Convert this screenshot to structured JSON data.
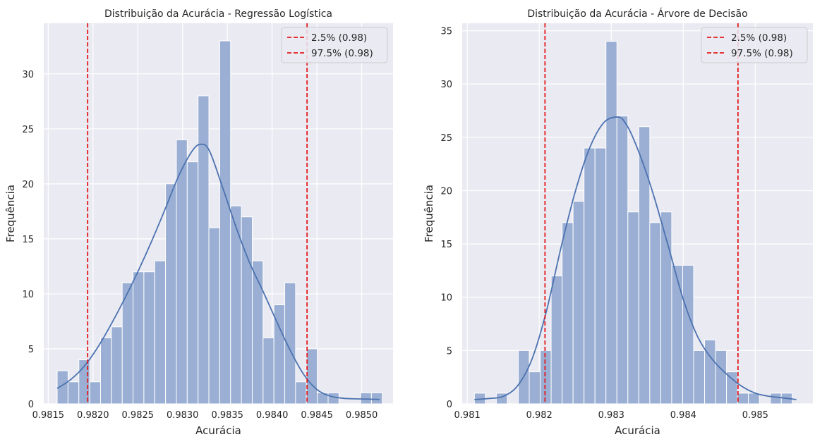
{
  "style": {
    "background": "#eaeaf2",
    "grid_color": "#ffffff",
    "bar_fill": "#9aafd3",
    "bar_edge": "#ffffff",
    "kde_color": "#4c72b0",
    "ci_color": "#e31a1c"
  },
  "chart_data": [
    {
      "type": "bar",
      "title": "Distribuição da Acurácia - Regressão Logística",
      "xlabel": "Acurácia",
      "ylabel": "Frequência",
      "grid": true,
      "legend_position": "top-right",
      "xlim": [
        0.98145,
        0.98535
      ],
      "ylim": [
        0,
        34.6
      ],
      "xticks": [
        0.9815,
        0.982,
        0.9825,
        0.983,
        0.9835,
        0.984,
        0.9845,
        0.985
      ],
      "xtick_labels": [
        "0.9815",
        "0.9820",
        "0.9825",
        "0.9830",
        "0.9835",
        "0.9840",
        "0.9845",
        "0.9850"
      ],
      "yticks": [
        0,
        5,
        10,
        15,
        20,
        25,
        30
      ],
      "ytick_labels": [
        "0",
        "5",
        "10",
        "15",
        "20",
        "25",
        "30"
      ],
      "bin_start": 0.9816,
      "bin_width": 0.000121,
      "counts": [
        3,
        2,
        4,
        2,
        6,
        7,
        11,
        12,
        12,
        13,
        20,
        24,
        22,
        28,
        16,
        33,
        18,
        17,
        13,
        6,
        9,
        11,
        2,
        5,
        1,
        1,
        0,
        0,
        1,
        1
      ],
      "kde": {
        "x": [
          0.9816,
          0.98175,
          0.9819,
          0.98205,
          0.9822,
          0.98235,
          0.9825,
          0.98265,
          0.9828,
          0.98295,
          0.9831,
          0.9832,
          0.9833,
          0.98345,
          0.9836,
          0.98375,
          0.9839,
          0.98405,
          0.9842,
          0.98435,
          0.9845,
          0.98465,
          0.9848,
          0.98495,
          0.9851,
          0.9852
        ],
        "y": [
          1.4,
          2.2,
          3.4,
          5.1,
          7.2,
          9.5,
          12.0,
          14.7,
          17.6,
          20.6,
          22.9,
          23.6,
          23.0,
          19.6,
          16.0,
          12.8,
          10.2,
          7.5,
          4.9,
          2.7,
          1.3,
          0.7,
          0.5,
          0.45,
          0.42,
          0.4
        ]
      },
      "ci_lines": [
        0.98194,
        0.98439
      ],
      "legend": [
        {
          "label": "2.5% (0.98)"
        },
        {
          "label": "97.5% (0.98)"
        }
      ]
    },
    {
      "type": "bar",
      "title": "Distribuição da Acurácia - Árvore de Decisão",
      "xlabel": "Acurácia",
      "ylabel": "Frequência",
      "grid": true,
      "legend_position": "top-right",
      "xlim": [
        0.98093,
        0.9858
      ],
      "ylim": [
        0,
        35.7
      ],
      "xticks": [
        0.981,
        0.982,
        0.983,
        0.984,
        0.985
      ],
      "xtick_labels": [
        "0.981",
        "0.982",
        "0.983",
        "0.984",
        "0.985"
      ],
      "yticks": [
        0,
        5,
        10,
        15,
        20,
        25,
        30,
        35
      ],
      "ytick_labels": [
        "0",
        "5",
        "10",
        "15",
        "20",
        "25",
        "30",
        "35"
      ],
      "bin_start": 0.9811,
      "bin_width": 0.0001522,
      "counts": [
        1,
        0,
        1,
        0,
        5,
        3,
        5,
        12,
        17,
        19,
        24,
        24,
        34,
        27,
        18,
        26,
        17,
        18,
        13,
        13,
        5,
        6,
        5,
        3,
        1,
        1,
        0,
        1,
        1,
        0
      ],
      "kde": {
        "x": [
          0.9811,
          0.9813,
          0.9815,
          0.9817,
          0.9819,
          0.9821,
          0.9823,
          0.9825,
          0.9827,
          0.9829,
          0.9831,
          0.9832,
          0.9833,
          0.98345,
          0.9836,
          0.9838,
          0.984,
          0.9842,
          0.9844,
          0.9846,
          0.9848,
          0.985,
          0.9852,
          0.9854,
          0.98557
        ],
        "y": [
          0.4,
          0.5,
          0.7,
          1.7,
          4.2,
          8.7,
          14.6,
          19.9,
          24.0,
          26.4,
          26.9,
          26.3,
          25.0,
          22.4,
          19.3,
          14.6,
          9.8,
          6.3,
          4.2,
          2.8,
          1.7,
          1.0,
          0.7,
          0.55,
          0.4
        ]
      },
      "ci_lines": [
        0.98208,
        0.98476
      ],
      "legend": [
        {
          "label": "2.5% (0.98)"
        },
        {
          "label": "97.5% (0.98)"
        }
      ]
    }
  ]
}
